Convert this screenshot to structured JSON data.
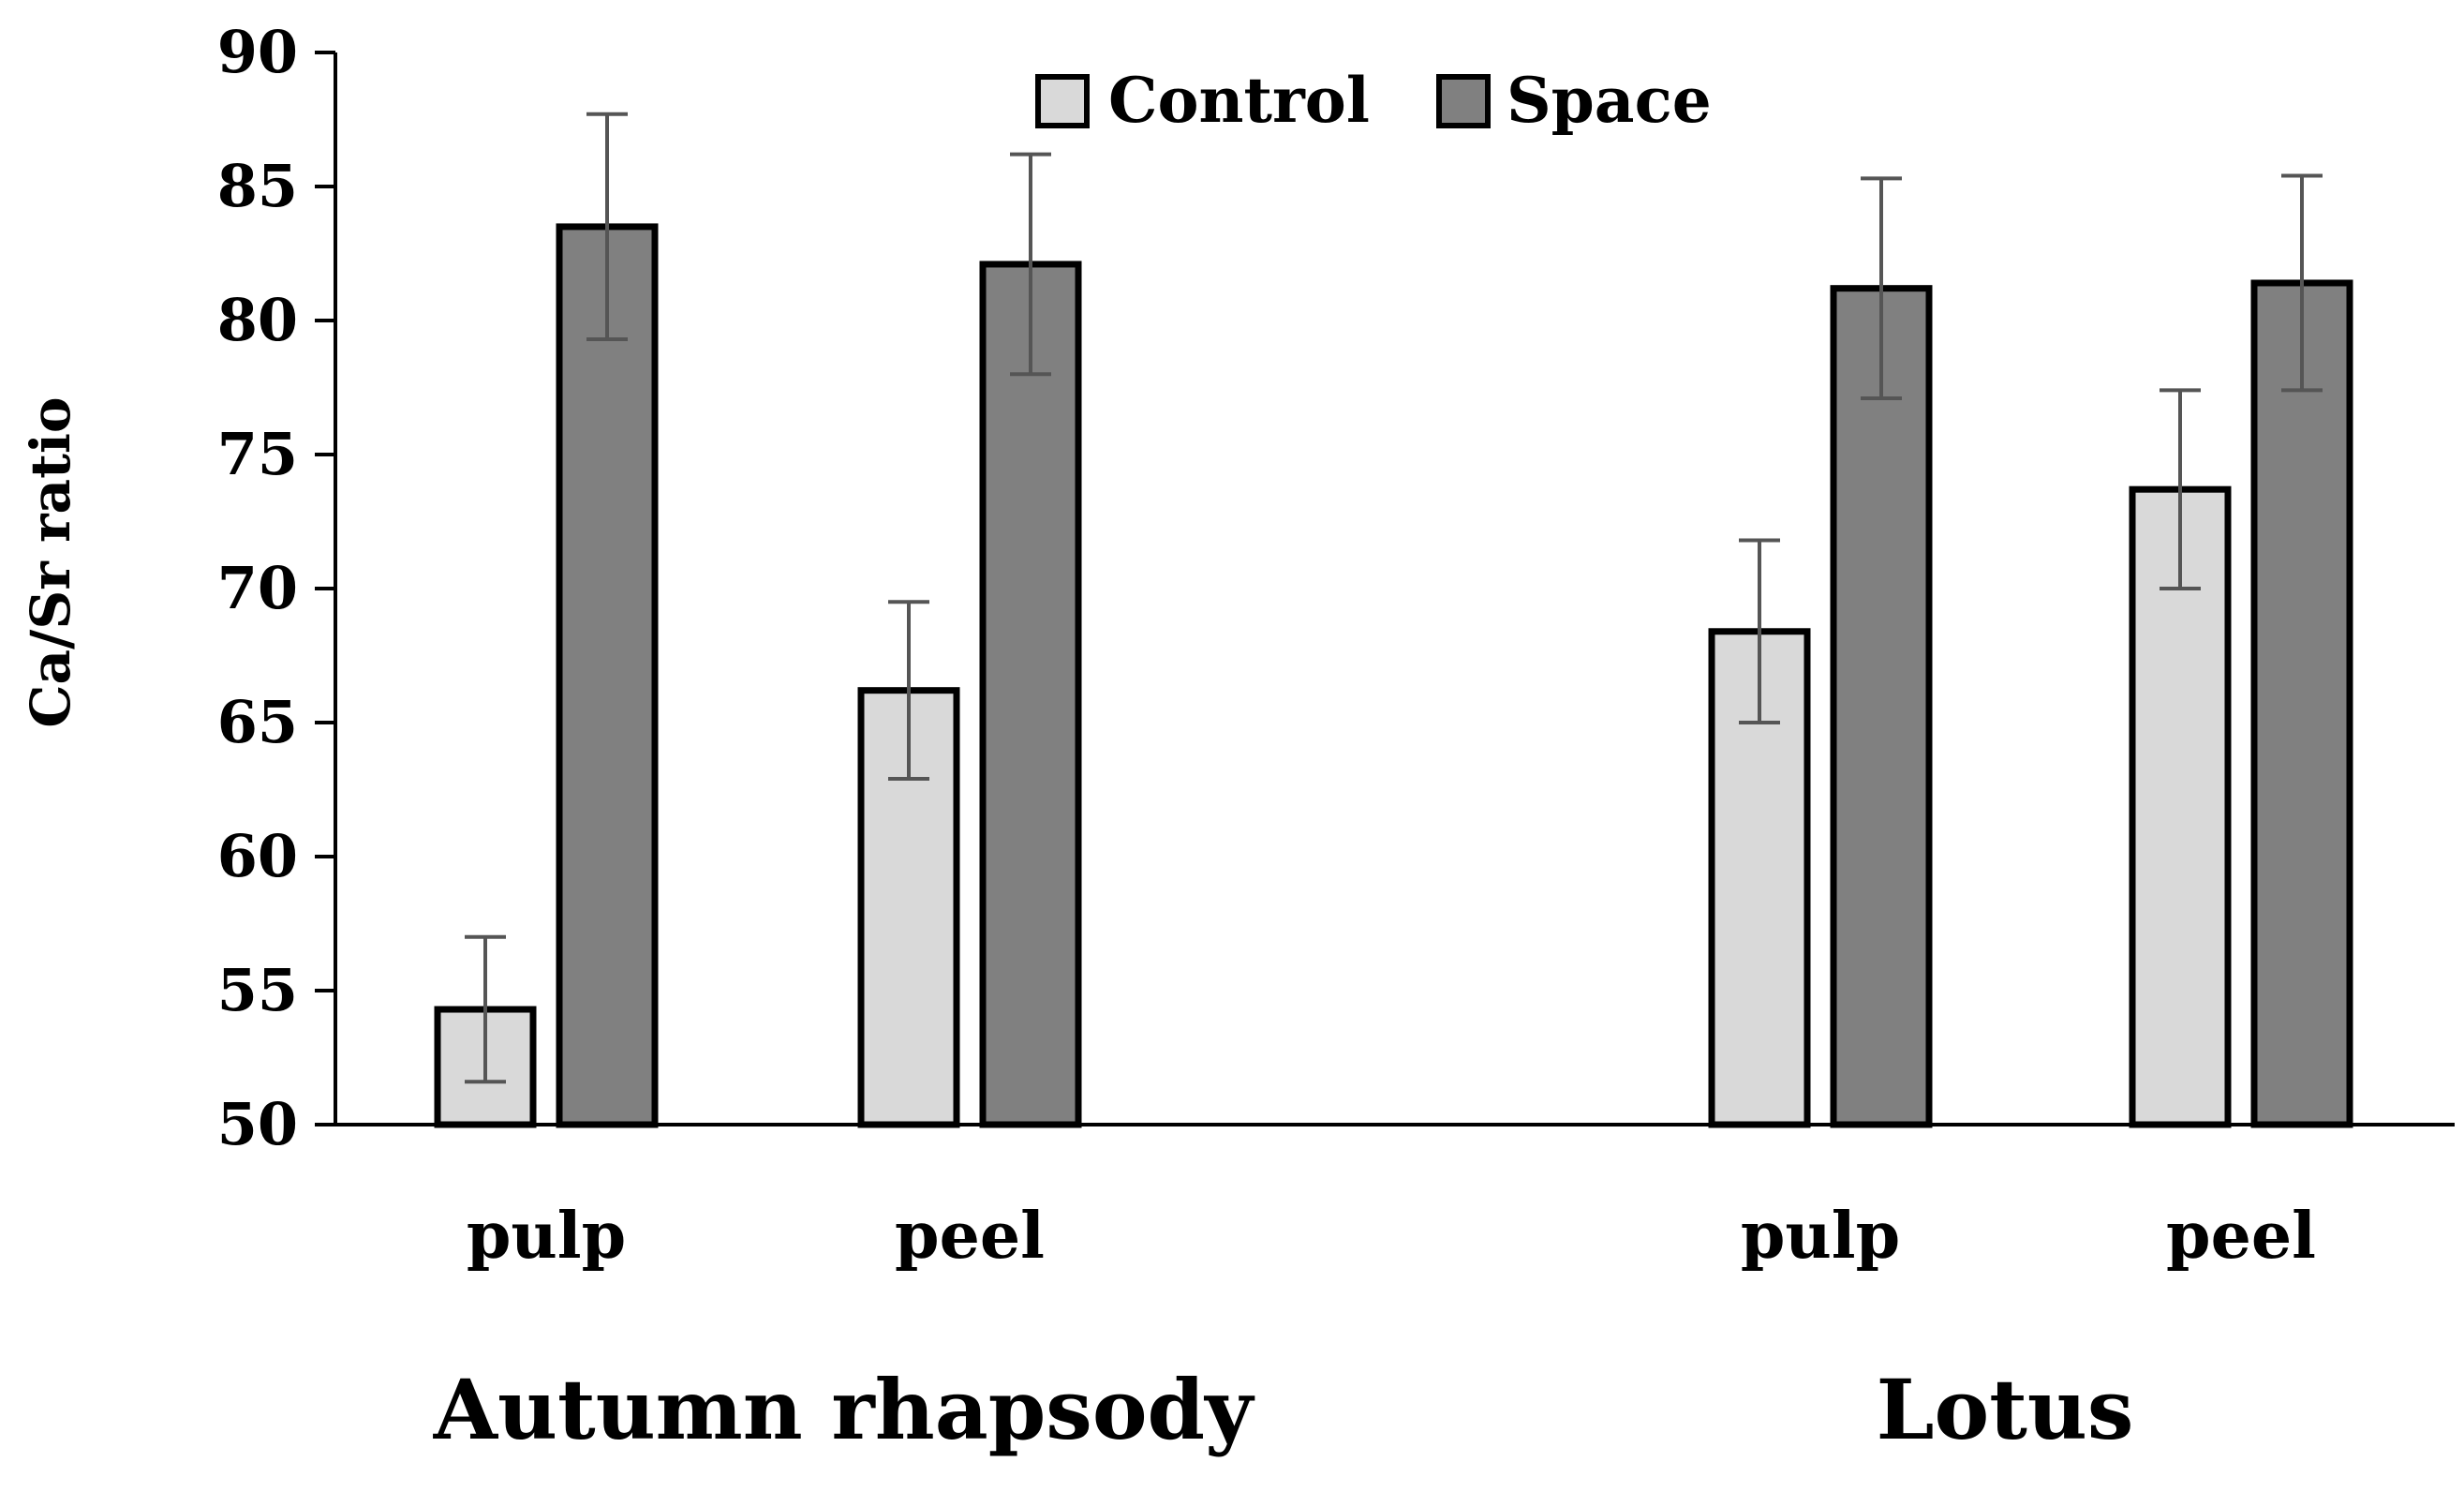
{
  "chart_data": {
    "type": "bar",
    "ylabel": "Ca/Sr ratio",
    "ylim": [
      50,
      90
    ],
    "yticks": [
      50,
      55,
      60,
      65,
      70,
      75,
      80,
      85,
      90
    ],
    "groups": [
      {
        "name": "Autumn rhapsody",
        "categories": [
          "pulp",
          "peel"
        ]
      },
      {
        "name": "Lotus",
        "categories": [
          "pulp",
          "peel"
        ]
      }
    ],
    "categories": [
      "pulp",
      "peel",
      "pulp",
      "peel"
    ],
    "series": [
      {
        "name": "Control",
        "color": "#d9d9d9",
        "values": [
          54.3,
          66.2,
          68.4,
          73.7
        ],
        "errors": [
          2.7,
          3.3,
          3.4,
          3.7
        ]
      },
      {
        "name": "Space",
        "color": "#808080",
        "values": [
          83.5,
          82.1,
          81.2,
          81.4
        ],
        "errors": [
          4.2,
          4.1,
          4.1,
          4.0
        ]
      }
    ],
    "legend_position": "top-center"
  }
}
